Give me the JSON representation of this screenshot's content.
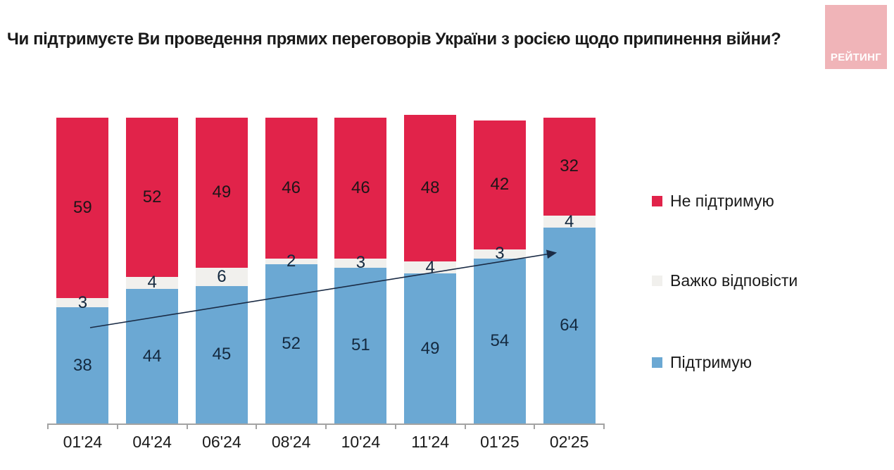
{
  "title": "Чи підтримуєте Ви проведення прямих переговорів України з росією щодо припинення війни?",
  "logo": {
    "text": "РЕЙТИНГ",
    "bg_color": "#F0B4B8",
    "text_color": "#FFFFFF"
  },
  "colors": {
    "support": "#6BA8D3",
    "hard": "#F1F0ED",
    "against": "#E1234A",
    "label_on_support": "#14293F",
    "label_on_hard": "#14293F",
    "label_on_against": "#1E1518",
    "axis": "#A3A3A3",
    "arrow": "#1A2B45"
  },
  "legend": [
    {
      "label": "Не підтримую",
      "color_key": "against"
    },
    {
      "label": "Важко відповісти",
      "color_key": "hard"
    },
    {
      "label": "Підтримую",
      "color_key": "support"
    }
  ],
  "chart_data": {
    "type": "bar",
    "stacked": true,
    "title": "Чи підтримуєте Ви проведення прямих переговорів України з росією щодо припинення війни?",
    "categories": [
      "01'24",
      "04'24",
      "06'24",
      "08'24",
      "10'24",
      "11'24",
      "01'25",
      "02'25"
    ],
    "series": [
      {
        "name": "Підтримую",
        "color_key": "support",
        "values": [
          38,
          44,
          45,
          52,
          51,
          49,
          54,
          64
        ]
      },
      {
        "name": "Важко відповісти",
        "color_key": "hard",
        "values": [
          3,
          4,
          6,
          2,
          3,
          4,
          3,
          4
        ]
      },
      {
        "name": "Не підтримую",
        "color_key": "against",
        "values": [
          59,
          52,
          49,
          46,
          46,
          48,
          42,
          32
        ]
      }
    ],
    "xlabel": "",
    "ylabel": "",
    "ylim": [
      0,
      100
    ],
    "grid": false,
    "legend_position": "right",
    "annotations": [
      "upward trend arrow across the 'Підтримую' series from 01'24 to 02'25"
    ]
  }
}
